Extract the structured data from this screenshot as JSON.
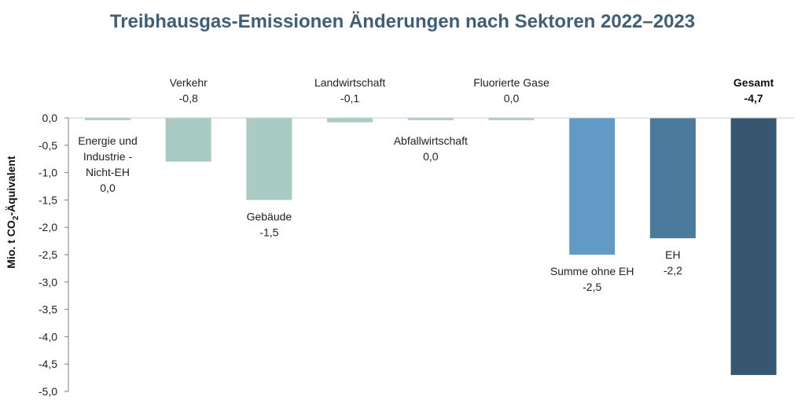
{
  "chart_data": {
    "type": "bar",
    "title": "Treibhausgas-Emissionen Änderungen nach Sektoren 2022–2023",
    "ylabel": "Mio. t CO₂-Äquivalent",
    "ylim": [
      -5.0,
      0.0
    ],
    "yticks": [
      "0,0",
      "-0,5",
      "-1,0",
      "-1,5",
      "-2,0",
      "-2,5",
      "-3,0",
      "-3,5",
      "-4,0",
      "-4,5",
      "-5,0"
    ],
    "grid": false,
    "legend": "none",
    "categories": [
      "Energie und Industrie - Nicht-EH",
      "Verkehr",
      "Gebäude",
      "Landwirtschaft",
      "Abfallwirtschaft",
      "Fluorierte Gase",
      "Summe ohne EH",
      "EH",
      "Gesamt"
    ],
    "values": [
      -0.04,
      -0.8,
      -1.5,
      -0.08,
      -0.04,
      -0.04,
      -2.5,
      -2.2,
      -4.7
    ],
    "value_labels": [
      "0,0",
      "-0,8",
      "-1,5",
      "-0,1",
      "0,0",
      "0,0",
      "-2,5",
      "-2,2",
      "-4,7"
    ],
    "label_lines": [
      [
        "Energie und",
        "Industrie -",
        "Nicht-EH",
        "0,0"
      ],
      [
        "Verkehr",
        "-0,8"
      ],
      [
        "Gebäude",
        "-1,5"
      ],
      [
        "Landwirtschaft",
        "-0,1"
      ],
      [
        "Abfallwirtschaft",
        "0,0"
      ],
      [
        "Fluorierte Gase",
        "0,0"
      ],
      [
        "Summe ohne EH",
        "-2,5"
      ],
      [
        "EH",
        "-2,2"
      ],
      [
        "Gesamt",
        "-4,7"
      ]
    ],
    "colors": [
      "#a8cbc3",
      "#a8cbc3",
      "#a8cbc3",
      "#a8cbc3",
      "#a8cbc3",
      "#a8cbc3",
      "#619bc5",
      "#4a7b9c",
      "#37566f"
    ]
  }
}
